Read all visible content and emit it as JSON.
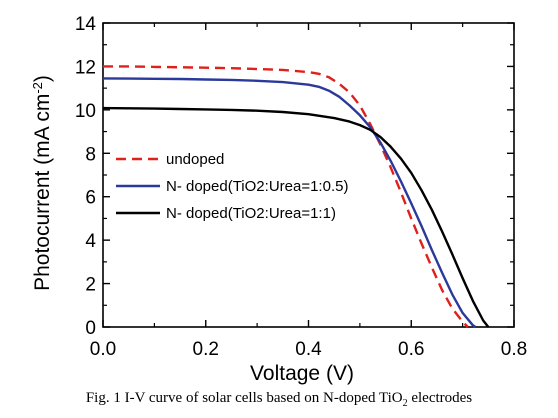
{
  "chart_data": {
    "type": "line",
    "xlabel": "Voltage (V)",
    "ylabel": "Photocurrent (mA cm",
    "ylabel_sup": "-2",
    "ylabel_tail": ")",
    "xlim": [
      0.0,
      0.8
    ],
    "ylim": [
      0,
      14
    ],
    "x_ticks": [
      "0.0",
      "0.2",
      "0.4",
      "0.6",
      "0.8"
    ],
    "y_ticks": [
      "0",
      "2",
      "4",
      "6",
      "8",
      "10",
      "12",
      "14"
    ],
    "grid": false,
    "legend_position": "center-left",
    "series": [
      {
        "name": "undoped",
        "color": "#e0201b",
        "dash": "dashed",
        "x": [
          0.0,
          0.05,
          0.1,
          0.15,
          0.2,
          0.25,
          0.3,
          0.35,
          0.4,
          0.42,
          0.44,
          0.46,
          0.48,
          0.5,
          0.52,
          0.54,
          0.56,
          0.58,
          0.6,
          0.62,
          0.64,
          0.66,
          0.68,
          0.7,
          0.71
        ],
        "y": [
          12.0,
          12.0,
          11.98,
          11.96,
          11.94,
          11.92,
          11.88,
          11.84,
          11.74,
          11.66,
          11.5,
          11.2,
          10.8,
          10.2,
          9.35,
          8.4,
          7.35,
          6.2,
          5.0,
          3.85,
          2.75,
          1.7,
          0.85,
          0.25,
          0.0
        ]
      },
      {
        "name": "N- doped(TiO2:Urea=1:0.5)",
        "color": "#2b3a9a",
        "dash": "solid",
        "x": [
          0.0,
          0.05,
          0.1,
          0.15,
          0.2,
          0.25,
          0.3,
          0.35,
          0.4,
          0.42,
          0.44,
          0.46,
          0.48,
          0.5,
          0.52,
          0.54,
          0.56,
          0.58,
          0.6,
          0.62,
          0.64,
          0.66,
          0.68,
          0.7,
          0.72,
          0.725
        ],
        "y": [
          11.45,
          11.44,
          11.43,
          11.42,
          11.4,
          11.38,
          11.34,
          11.28,
          11.16,
          11.06,
          10.88,
          10.6,
          10.2,
          9.75,
          9.2,
          8.5,
          7.65,
          6.7,
          5.7,
          4.65,
          3.55,
          2.5,
          1.5,
          0.65,
          0.08,
          0.0
        ]
      },
      {
        "name": "N- doped(TiO2:Urea=1:1)",
        "color": "#000000",
        "dash": "solid",
        "x": [
          0.0,
          0.05,
          0.1,
          0.15,
          0.2,
          0.25,
          0.3,
          0.35,
          0.4,
          0.45,
          0.48,
          0.5,
          0.52,
          0.54,
          0.56,
          0.58,
          0.6,
          0.62,
          0.64,
          0.66,
          0.68,
          0.7,
          0.72,
          0.74,
          0.75
        ],
        "y": [
          10.08,
          10.07,
          10.06,
          10.04,
          10.02,
          10.0,
          9.96,
          9.9,
          9.8,
          9.62,
          9.46,
          9.3,
          9.08,
          8.75,
          8.3,
          7.75,
          7.1,
          6.3,
          5.4,
          4.4,
          3.35,
          2.25,
          1.2,
          0.3,
          0.0
        ]
      }
    ]
  },
  "caption": {
    "prefix": "Fig. 1 I-V curve of solar cells based on N-doped TiO",
    "sub": "2",
    "suffix": " electrodes"
  }
}
